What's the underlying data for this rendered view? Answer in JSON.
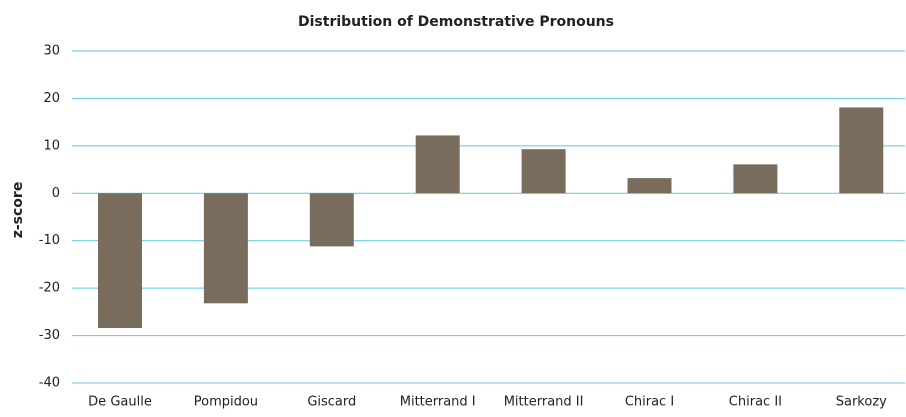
{
  "chart_data": {
    "type": "bar",
    "title": "Distribution of Demonstrative Pronouns",
    "y_label": "z-score",
    "categories": [
      "De Gaulle",
      "Pompidou",
      "Giscard",
      "Mitterrand I",
      "Mitterrand II",
      "Chirac I",
      "Chirac II",
      "Sarkozy"
    ],
    "values": [
      -28.4,
      -23.2,
      -11.2,
      12.2,
      9.3,
      3.2,
      6.1,
      18.1
    ],
    "color": "#7a6c5d",
    "ylim": [
      -40,
      30
    ],
    "yticks": [
      -40,
      -30,
      -20,
      -10,
      0,
      10,
      20,
      30
    ],
    "grid": true
  }
}
